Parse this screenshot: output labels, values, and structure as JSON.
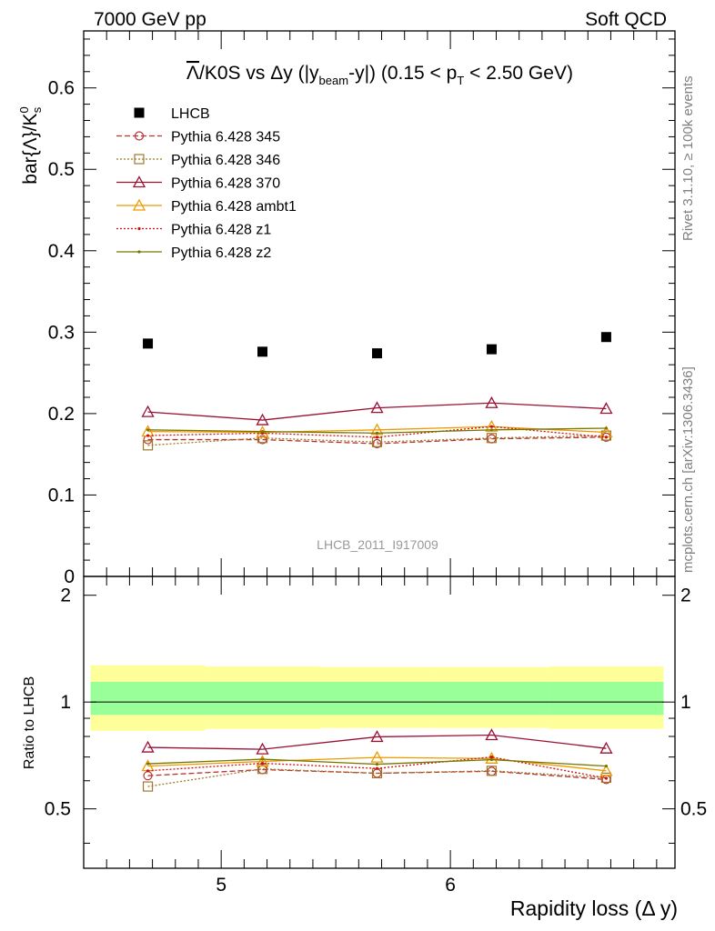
{
  "header": {
    "left": "7000 GeV pp",
    "right": "Soft QCD"
  },
  "plot_title": {
    "lambda": "Λ",
    "rest": "/K0S vs Δy (|y",
    "beam_sub": "beam",
    "mid": "-y|) (0.15 < p",
    "t_sub": "T",
    "end": " < 2.50 GeV)"
  },
  "ylabel_main": {
    "prefix": "bar{Λ}/K",
    "sup": "0",
    "sub": "s"
  },
  "ylabel_ratio": "Ratio to LHCB",
  "xlabel": "Rapidity loss (Δ y)",
  "watermark": "LHCB_2011_I917009",
  "side_text": {
    "rivet": "Rivet 3.1.10, ≥ 100k events",
    "mcplots": "mcplots.cern.ch [arXiv:1306.3436]"
  },
  "colors": {
    "lhcb": "#000000",
    "p345": "#b83232",
    "p346": "#a07828",
    "p370": "#991133",
    "ambt1": "#ee9900",
    "z1": "#cc1111",
    "z2": "#777700",
    "band_outer": "#ffff99",
    "band_inner": "#99ff99"
  },
  "chart_data": [
    {
      "type": "line",
      "panel": "main",
      "xlim": [
        4.4,
        6.98
      ],
      "ylim": [
        0,
        0.67
      ],
      "yticks": [
        0,
        0.1,
        0.2,
        0.3,
        0.4,
        0.5,
        0.6
      ],
      "ytick_labels": [
        "0",
        "0.1",
        "0.2",
        "0.3",
        "0.4",
        "0.5",
        "0.6"
      ],
      "x": [
        4.68,
        5.18,
        5.68,
        6.18,
        6.68
      ],
      "series": [
        {
          "name": "LHCB",
          "key": "lhcb",
          "style": "data",
          "values": [
            0.286,
            0.276,
            0.274,
            0.279,
            0.294
          ]
        },
        {
          "name": "Pythia 6.428 345",
          "key": "p345",
          "style": "circle-dash",
          "values": [
            0.168,
            0.168,
            0.163,
            0.169,
            0.171
          ]
        },
        {
          "name": "Pythia 6.428 346",
          "key": "p346",
          "style": "square-dot",
          "values": [
            0.161,
            0.17,
            0.165,
            0.17,
            0.173
          ]
        },
        {
          "name": "Pythia 6.428 370",
          "key": "p370",
          "style": "triangle-solid",
          "values": [
            0.202,
            0.192,
            0.207,
            0.213,
            0.206
          ]
        },
        {
          "name": "Pythia 6.428 ambt1",
          "key": "ambt1",
          "style": "triangle-solid",
          "values": [
            0.178,
            0.177,
            0.18,
            0.184,
            0.177
          ]
        },
        {
          "name": "Pythia 6.428 z1",
          "key": "z1",
          "style": "dot-dot",
          "values": [
            0.173,
            0.176,
            0.171,
            0.184,
            0.171
          ]
        },
        {
          "name": "Pythia 6.428 z2",
          "key": "z2",
          "style": "dot-solid",
          "values": [
            0.18,
            0.178,
            0.176,
            0.18,
            0.182
          ]
        }
      ]
    },
    {
      "type": "line",
      "panel": "ratio",
      "xlim": [
        4.4,
        6.98
      ],
      "ylim": [
        0.34,
        2.26
      ],
      "yticks": [
        0.5,
        1,
        2
      ],
      "ytick_labels": [
        "0.5",
        "1",
        "2"
      ],
      "xticks": [
        5,
        6
      ],
      "xtick_labels": [
        "5",
        "6"
      ],
      "x": [
        4.68,
        5.18,
        5.68,
        6.18,
        6.68
      ],
      "bands": {
        "edges": [
          4.43,
          4.93,
          5.43,
          5.93,
          6.43,
          6.93
        ],
        "outer": [
          [
            0.83,
            1.27
          ],
          [
            0.84,
            1.26
          ],
          [
            0.845,
            1.255
          ],
          [
            0.845,
            1.255
          ],
          [
            0.84,
            1.26
          ]
        ],
        "inner": [
          [
            0.92,
            1.14
          ],
          [
            0.92,
            1.14
          ],
          [
            0.92,
            1.14
          ],
          [
            0.92,
            1.14
          ],
          [
            0.92,
            1.14
          ]
        ]
      },
      "series": [
        {
          "name": "Pythia 6.428 345",
          "key": "p345",
          "style": "circle-dash",
          "values": [
            0.62,
            0.645,
            0.63,
            0.638,
            0.605
          ]
        },
        {
          "name": "Pythia 6.428 346",
          "key": "p346",
          "style": "square-dot",
          "values": [
            0.578,
            0.648,
            0.63,
            0.64,
            0.612
          ]
        },
        {
          "name": "Pythia 6.428 370",
          "key": "p370",
          "style": "triangle-solid",
          "values": [
            0.745,
            0.736,
            0.798,
            0.807,
            0.74
          ]
        },
        {
          "name": "Pythia 6.428 ambt1",
          "key": "ambt1",
          "style": "triangle-solid",
          "values": [
            0.66,
            0.68,
            0.698,
            0.693,
            0.64
          ]
        },
        {
          "name": "Pythia 6.428 z1",
          "key": "z1",
          "style": "dot-dot",
          "values": [
            0.64,
            0.672,
            0.65,
            0.7,
            0.61
          ]
        },
        {
          "name": "Pythia 6.428 z2",
          "key": "z2",
          "style": "dot-solid",
          "values": [
            0.67,
            0.69,
            0.668,
            0.688,
            0.66
          ]
        }
      ]
    }
  ]
}
